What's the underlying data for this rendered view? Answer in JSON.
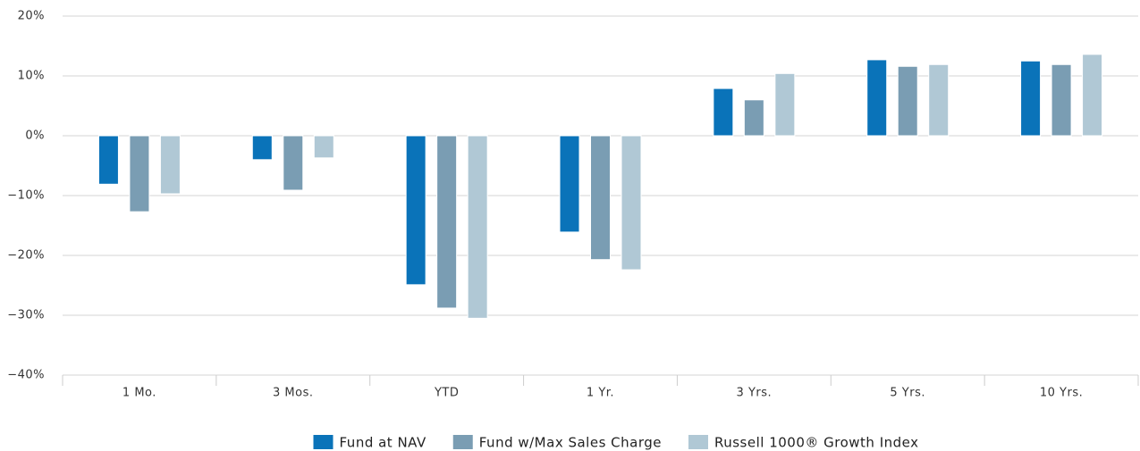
{
  "chart_data": {
    "type": "bar",
    "categories": [
      "1 Mo.",
      "3 Mos.",
      "YTD",
      "1 Yr.",
      "3 Yrs.",
      "5 Yrs.",
      "10 Yrs."
    ],
    "series": [
      {
        "name": "Fund at NAV",
        "color": "#0a73b9",
        "values": [
          -8.1,
          -4.0,
          -24.9,
          -16.1,
          7.9,
          12.7,
          12.5
        ]
      },
      {
        "name": "Fund w/Max Sales Charge",
        "color": "#7a9db3",
        "values": [
          -12.7,
          -9.1,
          -28.8,
          -20.7,
          6.0,
          11.6,
          11.9
        ]
      },
      {
        "name": "Russell 1000® Growth Index",
        "color": "#b0c8d5",
        "values": [
          -9.7,
          -3.7,
          -30.5,
          -22.4,
          10.4,
          11.9,
          13.6
        ]
      }
    ],
    "ylim": [
      -40,
      20
    ],
    "yticks": [
      {
        "value": -40,
        "label": "−40%"
      },
      {
        "value": -30,
        "label": "−30%"
      },
      {
        "value": -20,
        "label": "−20%"
      },
      {
        "value": -10,
        "label": "−10%"
      },
      {
        "value": 0,
        "label": "0%"
      },
      {
        "value": 10,
        "label": "10%"
      },
      {
        "value": 20,
        "label": "20%"
      }
    ],
    "grid": true,
    "legend": "bottom"
  }
}
